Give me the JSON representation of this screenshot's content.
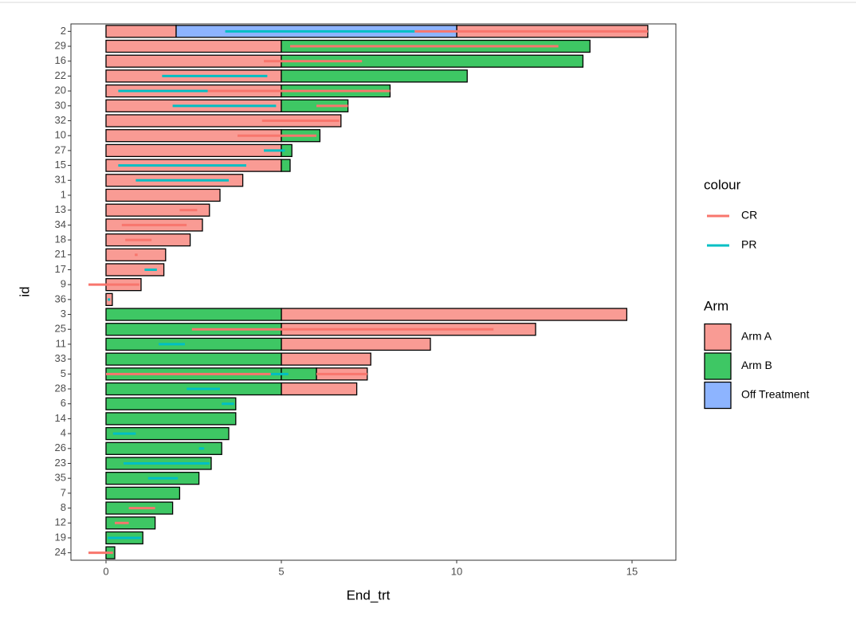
{
  "chart_data": {
    "type": "swimmer",
    "x_label": "End_trt",
    "y_label": "id",
    "xlim": [
      -1,
      16.25
    ],
    "xticks": [
      0,
      5,
      10,
      15
    ],
    "categories": [
      "2",
      "29",
      "16",
      "22",
      "20",
      "30",
      "32",
      "10",
      "27",
      "15",
      "31",
      "1",
      "13",
      "34",
      "18",
      "21",
      "17",
      "9",
      "36",
      "3",
      "25",
      "11",
      "33",
      "5",
      "28",
      "6",
      "14",
      "4",
      "26",
      "23",
      "35",
      "7",
      "8",
      "12",
      "19",
      "24"
    ],
    "arm_title": "Arm",
    "arms": [
      {
        "name": "Arm A",
        "color": "#f99b94",
        "segments": [
          {
            "id": "2",
            "start": 0,
            "end": 2
          },
          {
            "id": "2",
            "start": 10,
            "end": 15.45
          },
          {
            "id": "29",
            "start": 0,
            "end": 5
          },
          {
            "id": "16",
            "start": 0,
            "end": 5
          },
          {
            "id": "22",
            "start": 0,
            "end": 5
          },
          {
            "id": "20",
            "start": 0,
            "end": 5
          },
          {
            "id": "30",
            "start": 0,
            "end": 5
          },
          {
            "id": "32",
            "start": 0,
            "end": 6.7
          },
          {
            "id": "10",
            "start": 0,
            "end": 5
          },
          {
            "id": "27",
            "start": 0,
            "end": 5
          },
          {
            "id": "15",
            "start": 0,
            "end": 5
          },
          {
            "id": "31",
            "start": 0,
            "end": 3.9
          },
          {
            "id": "1",
            "start": 0,
            "end": 3.25
          },
          {
            "id": "13",
            "start": 0,
            "end": 2.95
          },
          {
            "id": "34",
            "start": 0,
            "end": 2.75
          },
          {
            "id": "18",
            "start": 0,
            "end": 2.4
          },
          {
            "id": "21",
            "start": 0,
            "end": 1.7
          },
          {
            "id": "17",
            "start": 0,
            "end": 1.65
          },
          {
            "id": "9",
            "start": 0,
            "end": 1.0
          },
          {
            "id": "36",
            "start": 0,
            "end": 0.18
          },
          {
            "id": "3",
            "start": 5,
            "end": 14.85
          },
          {
            "id": "25",
            "start": 5,
            "end": 12.25
          },
          {
            "id": "11",
            "start": 5,
            "end": 9.25
          },
          {
            "id": "33",
            "start": 5,
            "end": 7.55
          },
          {
            "id": "5",
            "start": 6,
            "end": 7.45
          },
          {
            "id": "28",
            "start": 5,
            "end": 7.15
          }
        ]
      },
      {
        "name": "Arm B",
        "color": "#3ec764",
        "segments": [
          {
            "id": "29",
            "start": 5,
            "end": 13.8
          },
          {
            "id": "16",
            "start": 5,
            "end": 13.6
          },
          {
            "id": "22",
            "start": 5,
            "end": 10.3
          },
          {
            "id": "20",
            "start": 5,
            "end": 8.1
          },
          {
            "id": "30",
            "start": 5,
            "end": 6.9
          },
          {
            "id": "10",
            "start": 5,
            "end": 6.1
          },
          {
            "id": "27",
            "start": 5,
            "end": 5.3
          },
          {
            "id": "15",
            "start": 5,
            "end": 5.25
          },
          {
            "id": "3",
            "start": 0,
            "end": 5
          },
          {
            "id": "25",
            "start": 0,
            "end": 5
          },
          {
            "id": "11",
            "start": 0,
            "end": 5
          },
          {
            "id": "33",
            "start": 0,
            "end": 5
          },
          {
            "id": "5",
            "start": 0,
            "end": 5
          },
          {
            "id": "5",
            "start": 5,
            "end": 6
          },
          {
            "id": "28",
            "start": 0,
            "end": 5
          },
          {
            "id": "6",
            "start": 0,
            "end": 3.7
          },
          {
            "id": "14",
            "start": 0,
            "end": 3.7
          },
          {
            "id": "4",
            "start": 0,
            "end": 3.5
          },
          {
            "id": "26",
            "start": 0,
            "end": 3.3
          },
          {
            "id": "23",
            "start": 0,
            "end": 3.0
          },
          {
            "id": "35",
            "start": 0,
            "end": 2.65
          },
          {
            "id": "7",
            "start": 0,
            "end": 2.1
          },
          {
            "id": "8",
            "start": 0,
            "end": 1.9
          },
          {
            "id": "12",
            "start": 0,
            "end": 1.4
          },
          {
            "id": "19",
            "start": 0,
            "end": 1.05
          },
          {
            "id": "24",
            "start": 0,
            "end": 0.25
          }
        ]
      },
      {
        "name": "Off Treatment",
        "color": "#8db4ff",
        "segments": [
          {
            "id": "2",
            "start": 2,
            "end": 10
          }
        ]
      }
    ],
    "response_title": "colour",
    "responses": [
      {
        "name": "CR",
        "color": "#f8766d",
        "segments": [
          {
            "id": "2",
            "start": 8.8,
            "end": 15.45
          },
          {
            "id": "29",
            "start": 5.25,
            "end": 12.9
          },
          {
            "id": "16",
            "start": 4.5,
            "end": 7.3
          },
          {
            "id": "20",
            "start": 2.9,
            "end": 8.1
          },
          {
            "id": "30",
            "start": 6.0,
            "end": 6.9
          },
          {
            "id": "32",
            "start": 4.45,
            "end": 6.65
          },
          {
            "id": "10",
            "start": 3.75,
            "end": 6.0
          },
          {
            "id": "13",
            "start": 2.1,
            "end": 2.6
          },
          {
            "id": "34",
            "start": 0.45,
            "end": 2.3
          },
          {
            "id": "18",
            "start": 0.55,
            "end": 1.3
          },
          {
            "id": "21",
            "start": 0.82,
            "end": 0.9
          },
          {
            "id": "9",
            "start": -0.5,
            "end": 0.95
          },
          {
            "id": "25",
            "start": 2.45,
            "end": 11.05
          },
          {
            "id": "5",
            "start": 0,
            "end": 4.7
          },
          {
            "id": "5",
            "start": 6.0,
            "end": 7.45
          },
          {
            "id": "8",
            "start": 0.65,
            "end": 1.4
          },
          {
            "id": "12",
            "start": 0.25,
            "end": 0.65
          },
          {
            "id": "24",
            "start": -0.5,
            "end": 0.2
          }
        ]
      },
      {
        "name": "PR",
        "color": "#00bfc4",
        "segments": [
          {
            "id": "2",
            "start": 3.4,
            "end": 8.8
          },
          {
            "id": "22",
            "start": 1.6,
            "end": 4.6
          },
          {
            "id": "20",
            "start": 0.35,
            "end": 2.9
          },
          {
            "id": "30",
            "start": 1.9,
            "end": 4.85
          },
          {
            "id": "27",
            "start": 4.5,
            "end": 5.1
          },
          {
            "id": "15",
            "start": 0.35,
            "end": 4.0
          },
          {
            "id": "31",
            "start": 0.85,
            "end": 3.5
          },
          {
            "id": "17",
            "start": 1.1,
            "end": 1.45
          },
          {
            "id": "36",
            "start": 0.05,
            "end": 0.12
          },
          {
            "id": "11",
            "start": 1.5,
            "end": 2.25
          },
          {
            "id": "5",
            "start": 4.7,
            "end": 5.2
          },
          {
            "id": "28",
            "start": 2.3,
            "end": 3.25
          },
          {
            "id": "6",
            "start": 3.3,
            "end": 3.65
          },
          {
            "id": "4",
            "start": 0.2,
            "end": 0.85
          },
          {
            "id": "26",
            "start": 2.65,
            "end": 2.8
          },
          {
            "id": "23",
            "start": 0.5,
            "end": 2.95
          },
          {
            "id": "35",
            "start": 1.2,
            "end": 2.05
          },
          {
            "id": "19",
            "start": 0.05,
            "end": 1.0
          }
        ]
      }
    ]
  }
}
